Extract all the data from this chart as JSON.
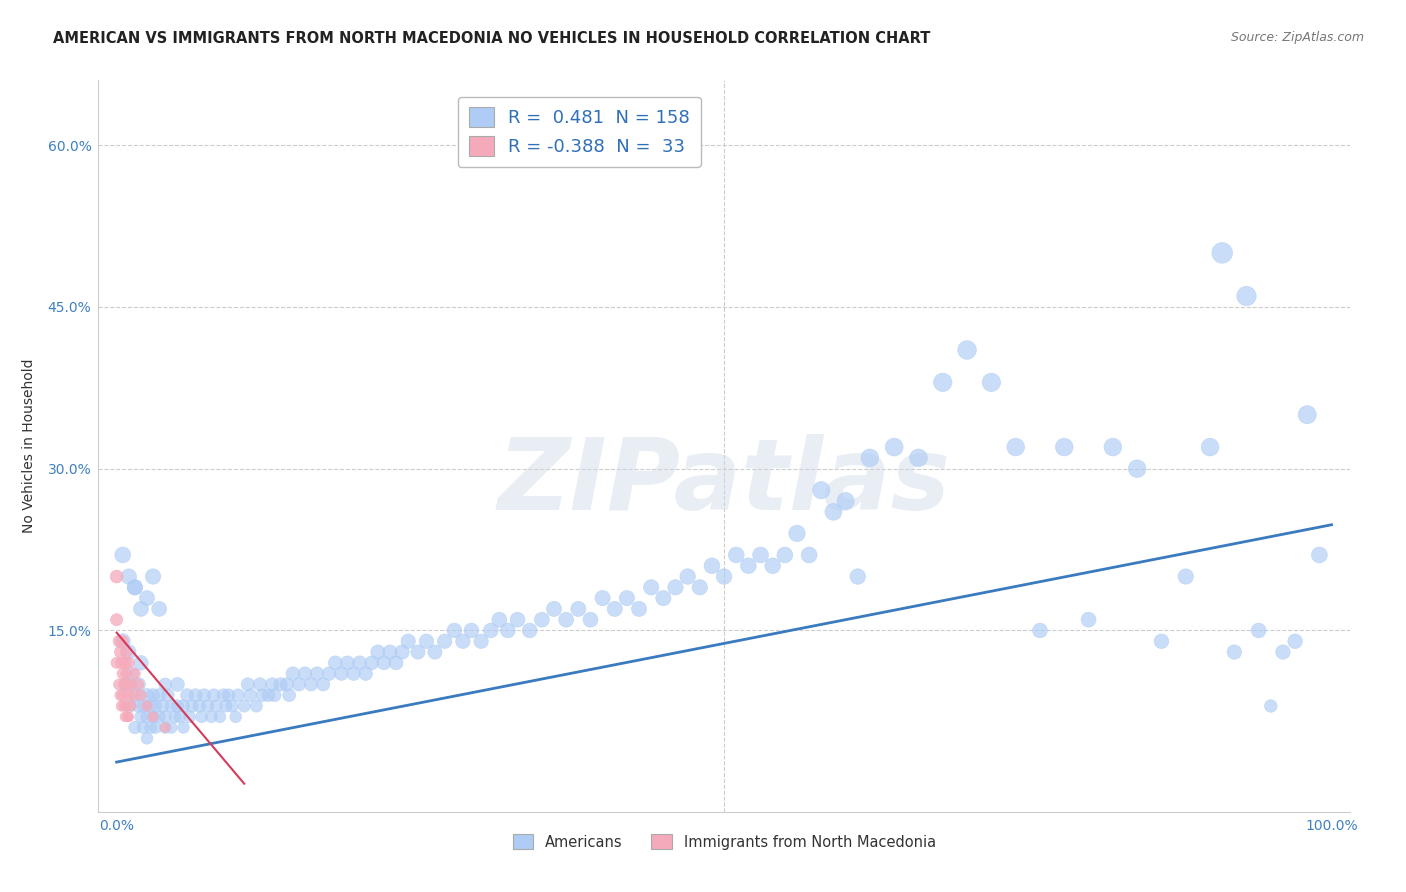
{
  "title": "AMERICAN VS IMMIGRANTS FROM NORTH MACEDONIA NO VEHICLES IN HOUSEHOLD CORRELATION CHART",
  "source": "Source: ZipAtlas.com",
  "ylabel": "No Vehicles in Household",
  "blue_R": 0.481,
  "blue_N": 158,
  "pink_R": -0.388,
  "pink_N": 33,
  "blue_color": "#aeccf5",
  "pink_color": "#f5aabb",
  "blue_line_color": "#3a7abf",
  "pink_line_color": "#d63a5a",
  "watermark": "ZIPatlas",
  "legend_label_blue": "Americans",
  "legend_label_pink": "Immigrants from North Macedonia",
  "xlim": [
    -0.015,
    1.015
  ],
  "ylim": [
    -0.018,
    0.66
  ],
  "ytick_positions": [
    0.0,
    0.15,
    0.3,
    0.45,
    0.6
  ],
  "ytick_labels": [
    "",
    "15.0%",
    "30.0%",
    "45.0%",
    "60.0%"
  ],
  "xtick_positions": [
    0.0,
    0.1,
    0.2,
    0.3,
    0.4,
    0.5,
    0.6,
    0.7,
    0.8,
    0.9,
    1.0
  ],
  "xtick_labels": [
    "0.0%",
    "",
    "",
    "",
    "",
    "",
    "",
    "",
    "",
    "",
    "100.0%"
  ],
  "grid_color": "#cccccc",
  "background_color": "#ffffff",
  "blue_trend_x": [
    0.0,
    1.0
  ],
  "blue_trend_y": [
    0.028,
    0.248
  ],
  "pink_trend_x": [
    0.0,
    0.105
  ],
  "pink_trend_y": [
    0.148,
    0.008
  ],
  "blue_points": {
    "x": [
      0.005,
      0.008,
      0.01,
      0.01,
      0.012,
      0.015,
      0.015,
      0.018,
      0.018,
      0.02,
      0.02,
      0.022,
      0.022,
      0.025,
      0.025,
      0.025,
      0.028,
      0.028,
      0.03,
      0.03,
      0.032,
      0.032,
      0.035,
      0.035,
      0.038,
      0.04,
      0.04,
      0.042,
      0.045,
      0.045,
      0.048,
      0.05,
      0.05,
      0.052,
      0.055,
      0.055,
      0.058,
      0.06,
      0.062,
      0.065,
      0.068,
      0.07,
      0.072,
      0.075,
      0.078,
      0.08,
      0.082,
      0.085,
      0.088,
      0.09,
      0.092,
      0.095,
      0.098,
      0.1,
      0.105,
      0.108,
      0.11,
      0.115,
      0.118,
      0.12,
      0.125,
      0.128,
      0.13,
      0.135,
      0.14,
      0.142,
      0.145,
      0.15,
      0.155,
      0.16,
      0.165,
      0.17,
      0.175,
      0.18,
      0.185,
      0.19,
      0.195,
      0.2,
      0.205,
      0.21,
      0.215,
      0.22,
      0.225,
      0.23,
      0.235,
      0.24,
      0.248,
      0.255,
      0.262,
      0.27,
      0.278,
      0.285,
      0.292,
      0.3,
      0.308,
      0.315,
      0.322,
      0.33,
      0.34,
      0.35,
      0.36,
      0.37,
      0.38,
      0.39,
      0.4,
      0.41,
      0.42,
      0.43,
      0.44,
      0.45,
      0.46,
      0.47,
      0.48,
      0.49,
      0.5,
      0.51,
      0.52,
      0.53,
      0.54,
      0.55,
      0.56,
      0.57,
      0.58,
      0.59,
      0.6,
      0.61,
      0.62,
      0.64,
      0.66,
      0.68,
      0.7,
      0.72,
      0.74,
      0.76,
      0.78,
      0.8,
      0.82,
      0.84,
      0.86,
      0.88,
      0.9,
      0.91,
      0.92,
      0.93,
      0.94,
      0.95,
      0.96,
      0.97,
      0.98,
      0.99,
      0.015,
      0.02,
      0.025,
      0.03,
      0.035,
      0.04,
      0.005,
      0.01,
      0.015
    ],
    "y": [
      0.14,
      0.1,
      0.13,
      0.08,
      0.11,
      0.09,
      0.06,
      0.1,
      0.08,
      0.07,
      0.12,
      0.08,
      0.06,
      0.09,
      0.07,
      0.05,
      0.08,
      0.06,
      0.09,
      0.07,
      0.08,
      0.06,
      0.07,
      0.09,
      0.08,
      0.07,
      0.06,
      0.09,
      0.08,
      0.06,
      0.07,
      0.08,
      0.1,
      0.07,
      0.08,
      0.06,
      0.09,
      0.07,
      0.08,
      0.09,
      0.08,
      0.07,
      0.09,
      0.08,
      0.07,
      0.09,
      0.08,
      0.07,
      0.09,
      0.08,
      0.09,
      0.08,
      0.07,
      0.09,
      0.08,
      0.1,
      0.09,
      0.08,
      0.1,
      0.09,
      0.09,
      0.1,
      0.09,
      0.1,
      0.1,
      0.09,
      0.11,
      0.1,
      0.11,
      0.1,
      0.11,
      0.1,
      0.11,
      0.12,
      0.11,
      0.12,
      0.11,
      0.12,
      0.11,
      0.12,
      0.13,
      0.12,
      0.13,
      0.12,
      0.13,
      0.14,
      0.13,
      0.14,
      0.13,
      0.14,
      0.15,
      0.14,
      0.15,
      0.14,
      0.15,
      0.16,
      0.15,
      0.16,
      0.15,
      0.16,
      0.17,
      0.16,
      0.17,
      0.16,
      0.18,
      0.17,
      0.18,
      0.17,
      0.19,
      0.18,
      0.19,
      0.2,
      0.19,
      0.21,
      0.2,
      0.22,
      0.21,
      0.22,
      0.21,
      0.22,
      0.24,
      0.22,
      0.28,
      0.26,
      0.27,
      0.2,
      0.31,
      0.32,
      0.31,
      0.38,
      0.41,
      0.38,
      0.32,
      0.15,
      0.32,
      0.16,
      0.32,
      0.3,
      0.14,
      0.2,
      0.32,
      0.5,
      0.13,
      0.46,
      0.15,
      0.08,
      0.13,
      0.14,
      0.35,
      0.22,
      0.19,
      0.17,
      0.18,
      0.2,
      0.17,
      0.1,
      0.22,
      0.2,
      0.19
    ],
    "sizes": [
      120,
      100,
      110,
      90,
      100,
      90,
      80,
      100,
      85,
      80,
      110,
      85,
      75,
      95,
      80,
      70,
      85,
      75,
      90,
      80,
      85,
      72,
      78,
      90,
      82,
      78,
      72,
      88,
      82,
      70,
      75,
      82,
      100,
      75,
      82,
      70,
      88,
      75,
      80,
      88,
      80,
      72,
      85,
      78,
      72,
      85,
      78,
      72,
      85,
      78,
      85,
      78,
      72,
      85,
      78,
      92,
      85,
      78,
      92,
      85,
      85,
      92,
      85,
      92,
      92,
      85,
      95,
      90,
      95,
      90,
      95,
      90,
      95,
      100,
      95,
      100,
      95,
      100,
      95,
      100,
      105,
      100,
      105,
      100,
      105,
      108,
      105,
      108,
      105,
      108,
      112,
      108,
      112,
      108,
      112,
      115,
      112,
      115,
      112,
      115,
      118,
      115,
      118,
      115,
      120,
      118,
      120,
      118,
      122,
      120,
      122,
      125,
      122,
      128,
      125,
      130,
      128,
      130,
      128,
      130,
      140,
      130,
      155,
      148,
      152,
      125,
      162,
      165,
      162,
      175,
      180,
      175,
      162,
      112,
      162,
      115,
      162,
      160,
      110,
      122,
      162,
      220,
      108,
      195,
      112,
      82,
      108,
      110,
      170,
      130,
      120,
      115,
      118,
      122,
      115,
      85,
      130,
      122,
      120
    ]
  },
  "pink_points": {
    "x": [
      0.0,
      0.0,
      0.0,
      0.002,
      0.002,
      0.003,
      0.003,
      0.004,
      0.004,
      0.005,
      0.005,
      0.005,
      0.006,
      0.006,
      0.007,
      0.007,
      0.008,
      0.008,
      0.008,
      0.009,
      0.009,
      0.01,
      0.01,
      0.01,
      0.012,
      0.012,
      0.014,
      0.015,
      0.018,
      0.02,
      0.025,
      0.03,
      0.04
    ],
    "y": [
      0.2,
      0.16,
      0.12,
      0.14,
      0.1,
      0.13,
      0.09,
      0.12,
      0.08,
      0.11,
      0.09,
      0.14,
      0.1,
      0.08,
      0.12,
      0.07,
      0.11,
      0.08,
      0.13,
      0.1,
      0.07,
      0.09,
      0.12,
      0.07,
      0.1,
      0.08,
      0.09,
      0.11,
      0.1,
      0.09,
      0.08,
      0.07,
      0.06
    ],
    "sizes": [
      85,
      75,
      65,
      72,
      62,
      70,
      60,
      68,
      58,
      65,
      60,
      70,
      62,
      55,
      68,
      52,
      64,
      58,
      70,
      62,
      50,
      58,
      65,
      50,
      60,
      55,
      58,
      62,
      60,
      58,
      55,
      52,
      48
    ]
  }
}
